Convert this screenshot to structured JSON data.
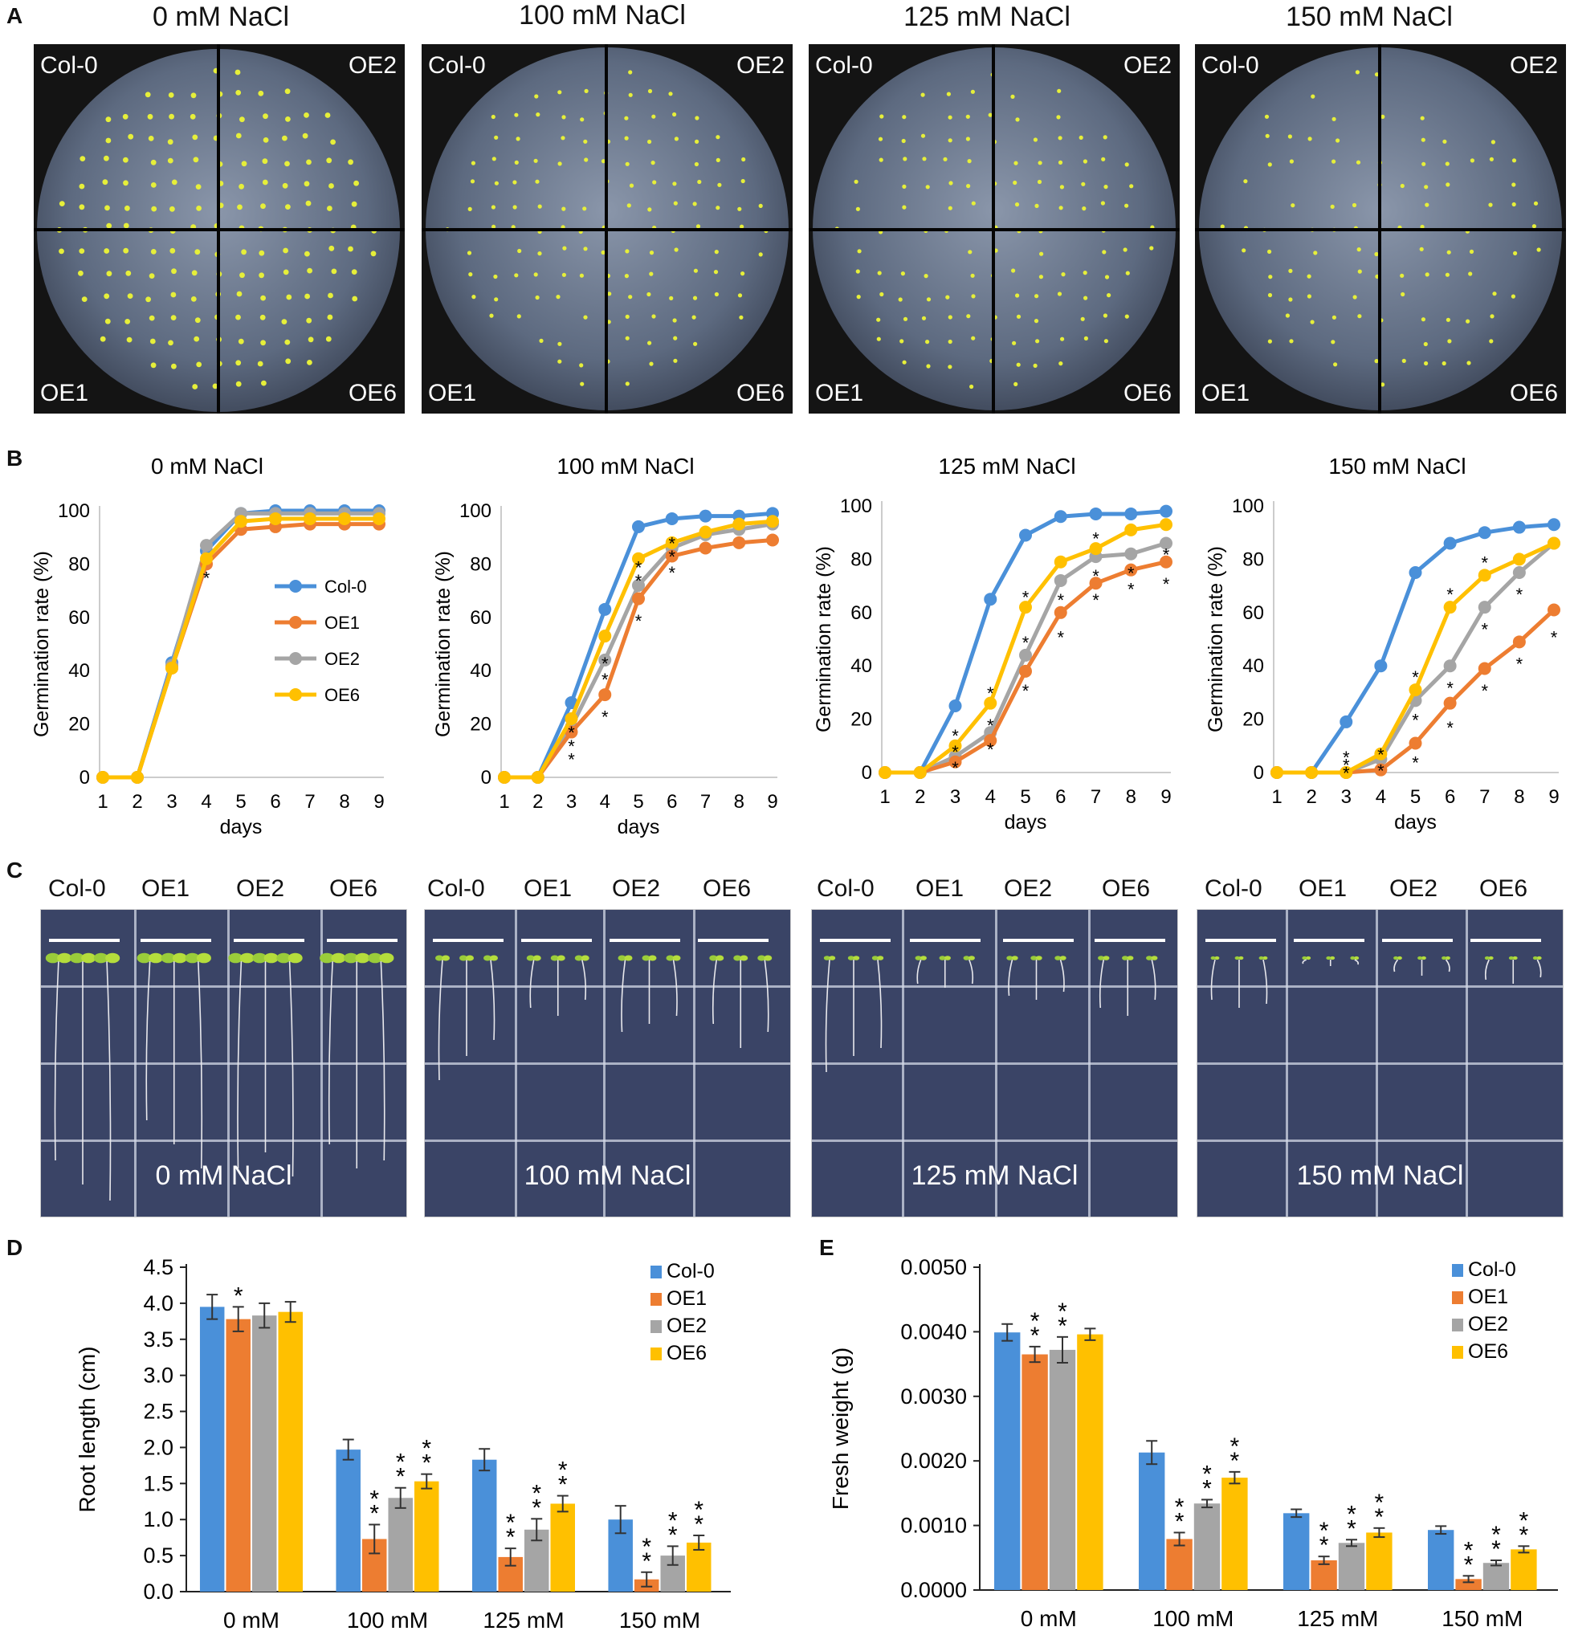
{
  "panels": {
    "a": "A",
    "b": "B",
    "c": "C",
    "d": "D",
    "e": "E"
  },
  "conditions": [
    "0 mM NaCl",
    "100 mM NaCl",
    "125 mM NaCl",
    "150 mM NaCl"
  ],
  "genotypes": [
    "Col-0",
    "OE1",
    "OE2",
    "OE6"
  ],
  "plate_quadrant_labels": {
    "top_left": "Col-0",
    "top_right": "OE2",
    "bottom_left": "OE1",
    "bottom_right": "OE6"
  },
  "colors": {
    "col0": "#4a90d9",
    "oe1": "#ed7d31",
    "oe2": "#a5a5a5",
    "oe6": "#ffc000"
  },
  "chart_data": [
    {
      "type": "line",
      "panel": "B",
      "title": "0 mM NaCl",
      "xlabel": "days",
      "ylabel": "Germination rate (%)",
      "x": [
        1,
        2,
        3,
        4,
        5,
        6,
        7,
        8,
        9
      ],
      "ylim": [
        0,
        100
      ],
      "yticks": [
        "0",
        "20",
        "40",
        "60",
        "80",
        "100"
      ],
      "legend": [
        "Col-0",
        "OE1",
        "OE2",
        "OE6"
      ],
      "series": [
        {
          "name": "Col-0",
          "values": [
            0,
            0,
            43,
            85,
            99,
            100,
            100,
            100,
            100
          ]
        },
        {
          "name": "OE1",
          "values": [
            0,
            0,
            41,
            80,
            93,
            94,
            95,
            95,
            95
          ]
        },
        {
          "name": "OE2",
          "values": [
            0,
            0,
            42,
            87,
            99,
            99,
            99,
            99,
            99
          ]
        },
        {
          "name": "OE6",
          "values": [
            0,
            0,
            41,
            82,
            96,
            97,
            97,
            97,
            97
          ]
        }
      ],
      "stars": [
        {
          "x": 4,
          "y": 76
        }
      ]
    },
    {
      "type": "line",
      "panel": "B",
      "title": "100 mM NaCl",
      "xlabel": "days",
      "ylabel": "Germination rate (%)",
      "x": [
        1,
        2,
        3,
        4,
        5,
        6,
        7,
        8,
        9
      ],
      "ylim": [
        0,
        100
      ],
      "yticks": [
        "0",
        "20",
        "40",
        "60",
        "80",
        "100"
      ],
      "series": [
        {
          "name": "Col-0",
          "values": [
            0,
            0,
            28,
            63,
            94,
            97,
            98,
            98,
            99
          ]
        },
        {
          "name": "OE1",
          "values": [
            0,
            0,
            17,
            31,
            67,
            83,
            86,
            88,
            89
          ]
        },
        {
          "name": "OE2",
          "values": [
            0,
            0,
            19,
            44,
            72,
            86,
            91,
            93,
            95
          ]
        },
        {
          "name": "OE6",
          "values": [
            0,
            0,
            22,
            53,
            82,
            88,
            92,
            95,
            96
          ]
        }
      ],
      "stars": [
        {
          "x": 3,
          "y": 8
        },
        {
          "x": 3,
          "y": 13
        },
        {
          "x": 3,
          "y": 18
        },
        {
          "x": 4,
          "y": 24
        },
        {
          "x": 4,
          "y": 38
        },
        {
          "x": 4,
          "y": 44
        },
        {
          "x": 5,
          "y": 60
        },
        {
          "x": 5,
          "y": 75
        },
        {
          "x": 5,
          "y": 80
        },
        {
          "x": 6,
          "y": 78
        },
        {
          "x": 6,
          "y": 84
        },
        {
          "x": 6,
          "y": 89
        }
      ]
    },
    {
      "type": "line",
      "panel": "B",
      "title": "125 mM NaCl",
      "xlabel": "days",
      "ylabel": "Germination rate (%)",
      "x": [
        1,
        2,
        3,
        4,
        5,
        6,
        7,
        8,
        9
      ],
      "ylim": [
        0,
        100
      ],
      "yticks": [
        "0",
        "20",
        "40",
        "60",
        "80",
        "100"
      ],
      "xticks": [
        "1",
        "2",
        "3",
        "4",
        "5",
        "6",
        "7",
        "8",
        "9"
      ],
      "series": [
        {
          "name": "Col-0",
          "values": [
            0,
            0,
            25,
            65,
            89,
            96,
            97,
            97,
            98
          ]
        },
        {
          "name": "OE1",
          "values": [
            0,
            0,
            4,
            12,
            38,
            60,
            71,
            76,
            79
          ]
        },
        {
          "name": "OE2",
          "values": [
            0,
            0,
            6,
            15,
            44,
            72,
            81,
            82,
            86
          ]
        },
        {
          "name": "OE6",
          "values": [
            0,
            0,
            10,
            26,
            62,
            79,
            84,
            91,
            93
          ]
        }
      ],
      "stars": [
        {
          "x": 3,
          "y": 3
        },
        {
          "x": 3,
          "y": 9
        },
        {
          "x": 3,
          "y": 15
        },
        {
          "x": 4,
          "y": 10
        },
        {
          "x": 4,
          "y": 19
        },
        {
          "x": 4,
          "y": 31
        },
        {
          "x": 5,
          "y": 32
        },
        {
          "x": 5,
          "y": 50
        },
        {
          "x": 5,
          "y": 67
        },
        {
          "x": 6,
          "y": 52
        },
        {
          "x": 6,
          "y": 66
        },
        {
          "x": 7,
          "y": 66
        },
        {
          "x": 7,
          "y": 75
        },
        {
          "x": 7,
          "y": 89
        },
        {
          "x": 8,
          "y": 70
        },
        {
          "x": 8,
          "y": 76
        },
        {
          "x": 9,
          "y": 72
        },
        {
          "x": 9,
          "y": 83
        }
      ]
    },
    {
      "type": "line",
      "panel": "B",
      "title": "150 mM NaCl",
      "xlabel": "days",
      "ylabel": "Germination rate (%)",
      "x": [
        1,
        2,
        3,
        4,
        5,
        6,
        7,
        8,
        9
      ],
      "ylim": [
        0,
        100
      ],
      "yticks": [
        "0",
        "20",
        "40",
        "60",
        "80",
        "100"
      ],
      "series": [
        {
          "name": "Col-0",
          "values": [
            0,
            0,
            19,
            40,
            75,
            86,
            90,
            92,
            93
          ]
        },
        {
          "name": "OE1",
          "values": [
            0,
            0,
            0,
            1,
            11,
            26,
            39,
            49,
            61
          ]
        },
        {
          "name": "OE2",
          "values": [
            0,
            0,
            0,
            5,
            27,
            40,
            62,
            75,
            86
          ]
        },
        {
          "name": "OE6",
          "values": [
            0,
            0,
            0,
            7,
            31,
            62,
            74,
            80,
            86
          ]
        }
      ],
      "stars": [
        {
          "x": 3,
          "y": 1
        },
        {
          "x": 3,
          "y": 4
        },
        {
          "x": 3,
          "y": 7
        },
        {
          "x": 4,
          "y": 2
        },
        {
          "x": 4,
          "y": 8
        },
        {
          "x": 5,
          "y": 5
        },
        {
          "x": 5,
          "y": 21
        },
        {
          "x": 5,
          "y": 37
        },
        {
          "x": 6,
          "y": 18
        },
        {
          "x": 6,
          "y": 33
        },
        {
          "x": 6,
          "y": 68
        },
        {
          "x": 7,
          "y": 32
        },
        {
          "x": 7,
          "y": 55
        },
        {
          "x": 7,
          "y": 80
        },
        {
          "x": 8,
          "y": 42
        },
        {
          "x": 8,
          "y": 68
        },
        {
          "x": 9,
          "y": 52
        }
      ]
    },
    {
      "type": "bar",
      "panel": "D",
      "categories": [
        "0 mM",
        "100 mM",
        "125 mM",
        "150 mM"
      ],
      "ylabel": "Root length (cm)",
      "ylim": [
        0,
        4.5
      ],
      "yticks": [
        "0.0",
        "0.5",
        "1.0",
        "1.5",
        "2.0",
        "2.5",
        "3.0",
        "3.5",
        "4.0",
        "4.5"
      ],
      "series": [
        {
          "name": "Col-0",
          "values": [
            3.95,
            1.97,
            1.83,
            1.0
          ],
          "errors": [
            0.17,
            0.14,
            0.15,
            0.19
          ],
          "marks": [
            "",
            "",
            "",
            ""
          ]
        },
        {
          "name": "OE1",
          "values": [
            3.78,
            0.73,
            0.48,
            0.17
          ],
          "errors": [
            0.17,
            0.2,
            0.12,
            0.1
          ],
          "marks": [
            "*",
            "**",
            "**",
            "**"
          ]
        },
        {
          "name": "OE2",
          "values": [
            3.83,
            1.3,
            0.86,
            0.5
          ],
          "errors": [
            0.17,
            0.14,
            0.15,
            0.13
          ],
          "marks": [
            "",
            "**",
            "**",
            "**"
          ]
        },
        {
          "name": "OE6",
          "values": [
            3.88,
            1.53,
            1.22,
            0.68
          ],
          "errors": [
            0.14,
            0.1,
            0.11,
            0.1
          ],
          "marks": [
            "",
            "**",
            "**",
            "**"
          ]
        }
      ]
    },
    {
      "type": "bar",
      "panel": "E",
      "categories": [
        "0 mM",
        "100 mM",
        "125 mM",
        "150 mM"
      ],
      "ylabel": "Fresh weight (g)",
      "ylim": [
        0,
        0.005
      ],
      "yticks": [
        "0.0000",
        "0.0010",
        "0.0020",
        "0.0030",
        "0.0040",
        "0.0050"
      ],
      "series": [
        {
          "name": "Col-0",
          "values": [
            0.00399,
            0.00213,
            0.00119,
            0.00093
          ],
          "errors": [
            0.00013,
            0.00018,
            6e-05,
            6e-05
          ],
          "marks": [
            "",
            "",
            "",
            ""
          ]
        },
        {
          "name": "OE1",
          "values": [
            0.00365,
            0.00079,
            0.00046,
            0.00017
          ],
          "errors": [
            0.00012,
            0.0001,
            6e-05,
            5e-05
          ],
          "marks": [
            "**",
            "**",
            "**",
            "**"
          ]
        },
        {
          "name": "OE2",
          "values": [
            0.00372,
            0.00134,
            0.00073,
            0.00042
          ],
          "errors": [
            0.0002,
            6e-05,
            5e-05,
            4e-05
          ],
          "marks": [
            "**",
            "**",
            "**",
            "**"
          ]
        },
        {
          "name": "OE6",
          "values": [
            0.00396,
            0.00174,
            0.00089,
            0.00063
          ],
          "errors": [
            9e-05,
            9e-05,
            7e-05,
            5e-05
          ],
          "marks": [
            "",
            "**",
            "**",
            "**"
          ]
        }
      ]
    }
  ]
}
